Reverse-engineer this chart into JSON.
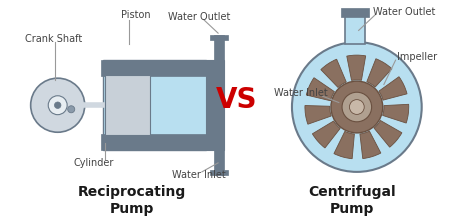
{
  "bg_color": "#ffffff",
  "pump_fill": "#b8dff0",
  "pump_stroke": "#6a7a8a",
  "dark_gray": "#6a7a8a",
  "medium_gray": "#8a9aaa",
  "light_gray": "#d0d8e0",
  "piston_gray": "#c8d0d8",
  "crank_gray": "#d0d8e0",
  "impeller_brown": "#8a7060",
  "impeller_dark": "#6a5040",
  "vs_color": "#cc0000",
  "label_color": "#444444",
  "line_color": "#999999",
  "title_color": "#1a1a1a",
  "recip_title": "Reciprocating\nPump",
  "centri_title": "Centrifugal\nPump",
  "vs_text": "VS"
}
